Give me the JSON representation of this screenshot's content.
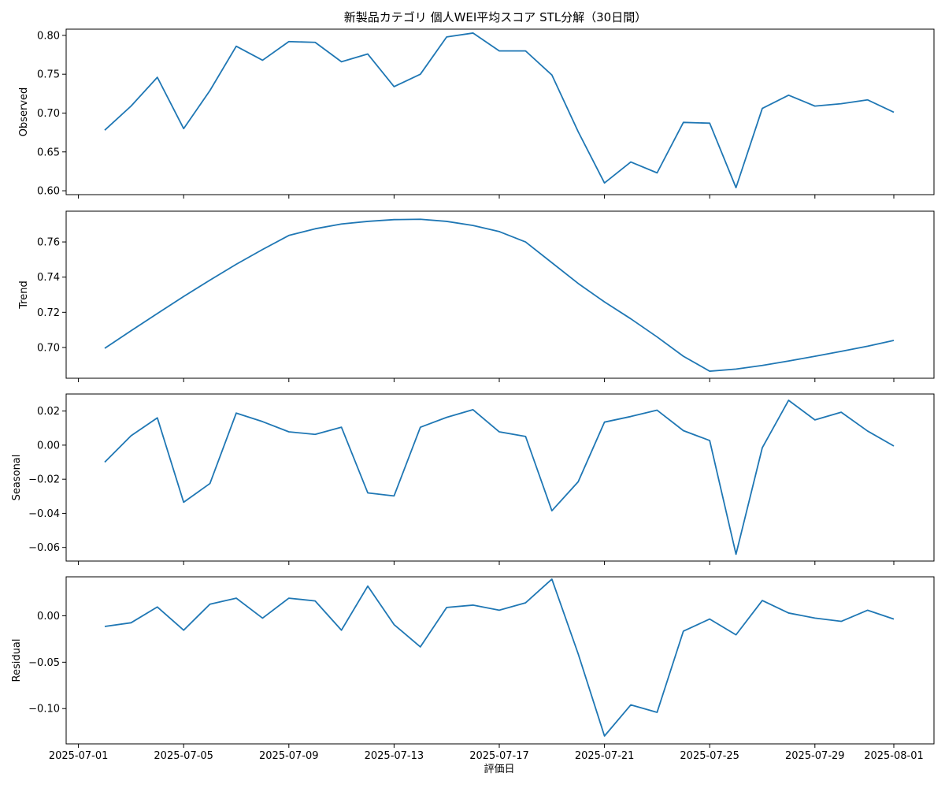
{
  "chart_data": {
    "type": "line",
    "title": "新製品カテゴリ 個人WEI平均スコア STL分解（30日間）",
    "xlabel": "評価日",
    "x": [
      "2025-07-02",
      "2025-07-03",
      "2025-07-04",
      "2025-07-05",
      "2025-07-06",
      "2025-07-07",
      "2025-07-08",
      "2025-07-09",
      "2025-07-10",
      "2025-07-11",
      "2025-07-12",
      "2025-07-13",
      "2025-07-14",
      "2025-07-15",
      "2025-07-16",
      "2025-07-17",
      "2025-07-18",
      "2025-07-19",
      "2025-07-20",
      "2025-07-21",
      "2025-07-22",
      "2025-07-23",
      "2025-07-24",
      "2025-07-25",
      "2025-07-26",
      "2025-07-27",
      "2025-07-28",
      "2025-07-29",
      "2025-07-30",
      "2025-07-31",
      "2025-08-01"
    ],
    "xtick_labels": [
      "2025-07-01",
      "2025-07-05",
      "2025-07-09",
      "2025-07-13",
      "2025-07-17",
      "2025-07-21",
      "2025-07-25",
      "2025-07-29",
      "2025-08-01"
    ],
    "line_color": "#1f77b4",
    "grid": false,
    "panels": [
      {
        "ylabel": "Observed",
        "ylim": [
          0.595,
          0.808
        ],
        "yticks": [
          0.6,
          0.65,
          0.7,
          0.75,
          0.8
        ],
        "ytick_labels": [
          "0.60",
          "0.65",
          "0.70",
          "0.75",
          "0.80"
        ],
        "values": [
          0.678,
          0.709,
          0.746,
          0.68,
          0.729,
          0.786,
          0.768,
          0.792,
          0.791,
          0.766,
          0.776,
          0.734,
          0.75,
          0.798,
          0.803,
          0.78,
          0.78,
          0.749,
          0.676,
          0.61,
          0.637,
          0.623,
          0.688,
          0.687,
          0.604,
          0.706,
          0.723,
          0.709,
          0.712,
          0.717,
          0.701
        ]
      },
      {
        "ylabel": "Trend",
        "ylim": [
          0.6825,
          0.7775
        ],
        "yticks": [
          0.7,
          0.72,
          0.74,
          0.76
        ],
        "ytick_labels": [
          "0.70",
          "0.72",
          "0.74",
          "0.76"
        ],
        "values": [
          0.6995,
          0.7095,
          0.7193,
          0.729,
          0.7383,
          0.7473,
          0.7557,
          0.7637,
          0.7675,
          0.7702,
          0.7717,
          0.7727,
          0.7729,
          0.7717,
          0.7694,
          0.7659,
          0.76,
          0.7482,
          0.7364,
          0.7259,
          0.7163,
          0.706,
          0.695,
          0.6865,
          0.6877,
          0.6898,
          0.6923,
          0.695,
          0.6978,
          0.7007,
          0.704
        ]
      },
      {
        "ylabel": "Seasonal",
        "ylim": [
          -0.068,
          0.03
        ],
        "yticks": [
          -0.06,
          -0.04,
          -0.02,
          0.0,
          0.02
        ],
        "ytick_labels": [
          "−0.06",
          "−0.04",
          "−0.02",
          "0.00",
          "0.02"
        ],
        "values": [
          -0.01,
          0.0055,
          0.016,
          -0.0335,
          -0.0225,
          0.0188,
          0.0138,
          0.0078,
          0.0063,
          0.0105,
          -0.028,
          -0.0298,
          0.0105,
          0.0163,
          0.0208,
          0.0078,
          0.0051,
          -0.0385,
          -0.0215,
          0.0135,
          0.0168,
          0.0205,
          0.0085,
          0.0027,
          -0.064,
          -0.0015,
          0.0263,
          0.0148,
          0.0193,
          0.0083,
          -0.0005
        ]
      },
      {
        "ylabel": "Residual",
        "ylim": [
          -0.138,
          0.042
        ],
        "yticks": [
          -0.1,
          -0.05,
          0.0
        ],
        "ytick_labels": [
          "−0.10",
          "−0.05",
          "0.00"
        ],
        "values": [
          -0.0115,
          -0.0075,
          0.0095,
          -0.0155,
          0.0125,
          0.019,
          -0.0025,
          0.019,
          0.016,
          -0.0155,
          0.032,
          -0.0095,
          -0.0335,
          0.009,
          0.0115,
          0.006,
          0.014,
          0.0395,
          -0.041,
          -0.1295,
          -0.096,
          -0.104,
          -0.0165,
          -0.0035,
          -0.0205,
          0.0165,
          0.003,
          -0.0025,
          -0.006,
          0.006,
          -0.0035
        ]
      }
    ]
  }
}
